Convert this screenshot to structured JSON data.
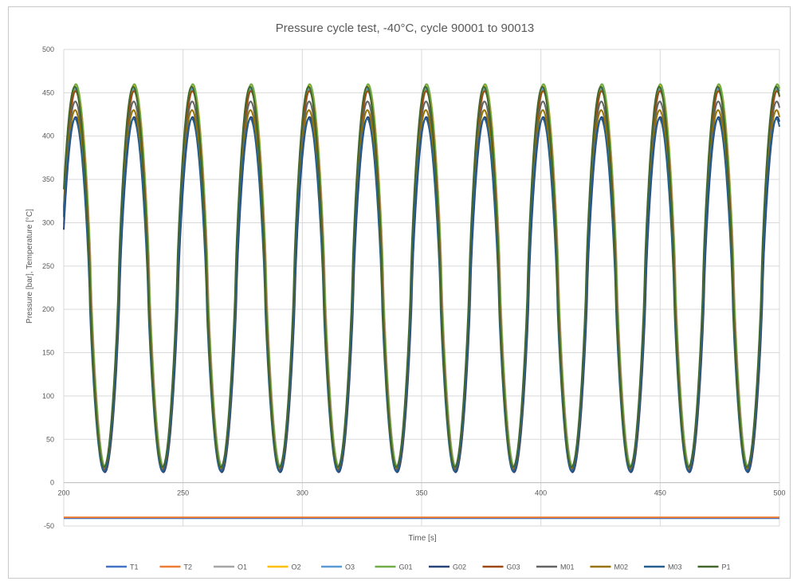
{
  "chart_data": {
    "type": "line",
    "title": "Pressure cycle test, -40°C, cycle 90001 to 90013",
    "xlabel": "Time [s]",
    "ylabel": "Pressure [bar], Temperature  [°C]",
    "xlim": [
      200,
      500
    ],
    "ylim": [
      -50,
      500
    ],
    "x_ticks": [
      200,
      250,
      300,
      350,
      400,
      450,
      500
    ],
    "y_ticks": [
      -50,
      0,
      50,
      100,
      150,
      200,
      250,
      300,
      350,
      400,
      450,
      500
    ],
    "grid": true,
    "legend_position": "bottom",
    "cycle_period_s": 24.5,
    "first_peak_time_s": 205,
    "series": [
      {
        "name": "T1",
        "color": "#4472C4",
        "kind": "temperature",
        "level": -41
      },
      {
        "name": "T2",
        "color": "#ED7D31",
        "kind": "temperature",
        "level": -40
      },
      {
        "name": "O1",
        "color": "#A5A5A5",
        "kind": "pressure",
        "peak": 455,
        "trough": 17
      },
      {
        "name": "O2",
        "color": "#FFC000",
        "kind": "pressure",
        "peak": 458,
        "trough": 15
      },
      {
        "name": "O3",
        "color": "#5B9BD5",
        "kind": "pressure",
        "peak": 456,
        "trough": 16
      },
      {
        "name": "G01",
        "color": "#70AD47",
        "kind": "pressure",
        "peak": 460,
        "trough": 18
      },
      {
        "name": "G02",
        "color": "#264478",
        "kind": "pressure",
        "peak": 422,
        "trough": 12
      },
      {
        "name": "G03",
        "color": "#9E480E",
        "kind": "pressure",
        "peak": 452,
        "trough": 14
      },
      {
        "name": "M01",
        "color": "#636363",
        "kind": "pressure",
        "peak": 440,
        "trough": 16
      },
      {
        "name": "M02",
        "color": "#997300",
        "kind": "pressure",
        "peak": 430,
        "trough": 17
      },
      {
        "name": "M03",
        "color": "#255E91",
        "kind": "pressure",
        "peak": 420,
        "trough": 13
      },
      {
        "name": "P1",
        "color": "#43682B",
        "kind": "pressure",
        "peak": 457,
        "trough": 18
      }
    ]
  }
}
